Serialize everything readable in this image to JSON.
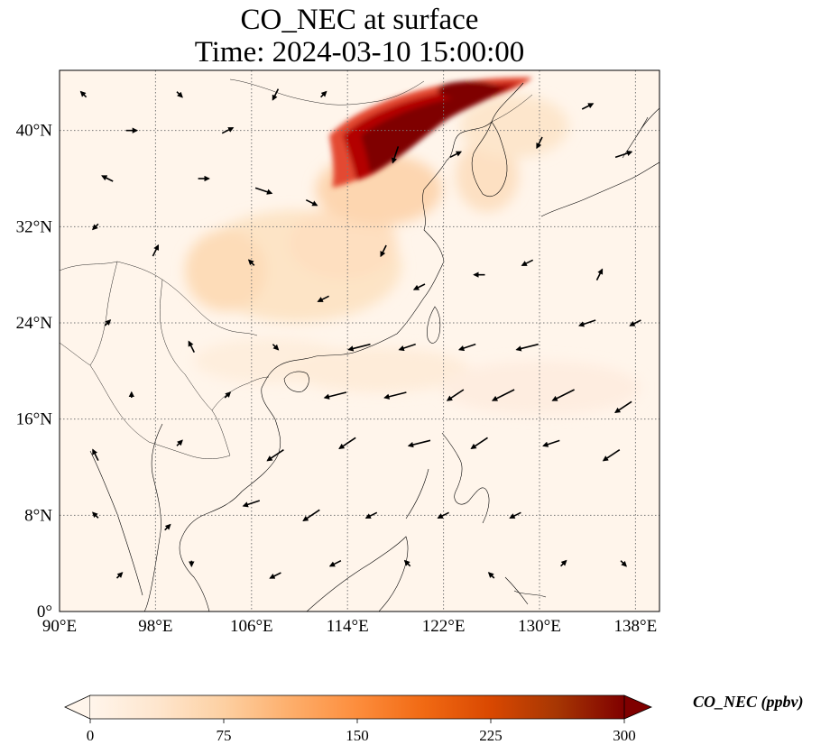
{
  "title": "CO_NEC at surface",
  "subtitle": "Time: 2024-03-10 15:00:00",
  "map": {
    "lon_range": [
      90,
      140
    ],
    "lat_range": [
      0,
      45
    ],
    "lon_ticks": [
      90,
      98,
      106,
      114,
      122,
      130,
      138
    ],
    "lon_tick_labels": [
      "90°E",
      "98°E",
      "106°E",
      "114°E",
      "122°E",
      "130°E",
      "138°E"
    ],
    "lat_ticks": [
      0,
      8,
      16,
      24,
      32,
      40
    ],
    "lat_tick_labels": [
      "0°",
      "8°N",
      "16°N",
      "24°N",
      "32°N",
      "40°N"
    ],
    "gridlines": "dotted",
    "background_color": "#fff5eb",
    "high_concentration_color": "#7f0000"
  },
  "colorbar": {
    "label": "CO_NEC (ppbv)",
    "ticks": [
      0,
      75,
      150,
      225,
      300
    ],
    "tick_labels": [
      "0",
      "75",
      "150",
      "225",
      "300"
    ],
    "min": 0,
    "max": 300,
    "extend": "both",
    "colors": [
      "#fff5eb",
      "#fee6ce",
      "#fdd0a2",
      "#fdae6b",
      "#fd8d3c",
      "#f16913",
      "#d94801",
      "#a63603",
      "#7f0000"
    ]
  },
  "chart_data": {
    "type": "heatmap",
    "title": "CO_NEC at surface",
    "subtitle": "Time: 2024-03-10 15:00:00",
    "variable": "CO_NEC (ppbv)",
    "regions": [
      {
        "lon": 119.0,
        "lat": 41.0,
        "value": 300
      },
      {
        "lon": 122.0,
        "lat": 42.5,
        "value": 300
      },
      {
        "lon": 116.0,
        "lat": 38.5,
        "value": 280
      },
      {
        "lon": 113.0,
        "lat": 39.5,
        "value": 220
      },
      {
        "lon": 126.0,
        "lat": 43.5,
        "value": 250
      },
      {
        "lon": 109.0,
        "lat": 29.5,
        "value": 60
      },
      {
        "lon": 115.0,
        "lat": 29.0,
        "value": 50
      },
      {
        "lon": 125.5,
        "lat": 36.0,
        "value": 45
      },
      {
        "lon": 113.0,
        "lat": 19.0,
        "value": 25
      }
    ],
    "wind_vectors": [
      {
        "lon": 92,
        "lat": 43,
        "u": -1,
        "v": 1
      },
      {
        "lon": 96,
        "lat": 40,
        "u": 2,
        "v": 0
      },
      {
        "lon": 100,
        "lat": 43,
        "u": 1,
        "v": -1
      },
      {
        "lon": 104,
        "lat": 40,
        "u": 2,
        "v": 1
      },
      {
        "lon": 108,
        "lat": 43,
        "u": -1,
        "v": -2
      },
      {
        "lon": 112,
        "lat": 43,
        "u": 1,
        "v": 1
      },
      {
        "lon": 94,
        "lat": 36,
        "u": -2,
        "v": 1
      },
      {
        "lon": 102,
        "lat": 36,
        "u": 2,
        "v": 0
      },
      {
        "lon": 107,
        "lat": 35,
        "u": 3,
        "v": -1
      },
      {
        "lon": 111,
        "lat": 34,
        "u": 2,
        "v": -1
      },
      {
        "lon": 118,
        "lat": 38,
        "u": -1,
        "v": -3
      },
      {
        "lon": 123,
        "lat": 38,
        "u": 2,
        "v": 1
      },
      {
        "lon": 130,
        "lat": 39,
        "u": -1,
        "v": -2
      },
      {
        "lon": 134,
        "lat": 42,
        "u": 2,
        "v": 1
      },
      {
        "lon": 137,
        "lat": 38,
        "u": 3,
        "v": 1
      },
      {
        "lon": 93,
        "lat": 32,
        "u": -1,
        "v": -1
      },
      {
        "lon": 98,
        "lat": 30,
        "u": 1,
        "v": 2
      },
      {
        "lon": 106,
        "lat": 29,
        "u": -1,
        "v": 1
      },
      {
        "lon": 112,
        "lat": 26,
        "u": -2,
        "v": -1
      },
      {
        "lon": 117,
        "lat": 30,
        "u": -1,
        "v": -2
      },
      {
        "lon": 120,
        "lat": 27,
        "u": -2,
        "v": -1
      },
      {
        "lon": 125,
        "lat": 28,
        "u": -2,
        "v": 0
      },
      {
        "lon": 129,
        "lat": 29,
        "u": -2,
        "v": -1
      },
      {
        "lon": 135,
        "lat": 28,
        "u": 1,
        "v": 2
      },
      {
        "lon": 94,
        "lat": 24,
        "u": 1,
        "v": 1
      },
      {
        "lon": 101,
        "lat": 22,
        "u": -1,
        "v": 2
      },
      {
        "lon": 108,
        "lat": 22,
        "u": 1,
        "v": -1
      },
      {
        "lon": 115,
        "lat": 22,
        "u": -4,
        "v": -1
      },
      {
        "lon": 119,
        "lat": 22,
        "u": -3,
        "v": -1
      },
      {
        "lon": 124,
        "lat": 22,
        "u": -3,
        "v": -1
      },
      {
        "lon": 129,
        "lat": 22,
        "u": -4,
        "v": -1
      },
      {
        "lon": 134,
        "lat": 24,
        "u": -3,
        "v": -1
      },
      {
        "lon": 138,
        "lat": 24,
        "u": -2,
        "v": -1
      },
      {
        "lon": 96,
        "lat": 18,
        "u": 0,
        "v": 1
      },
      {
        "lon": 104,
        "lat": 18,
        "u": 1,
        "v": 1
      },
      {
        "lon": 113,
        "lat": 18,
        "u": -4,
        "v": -1
      },
      {
        "lon": 118,
        "lat": 18,
        "u": -4,
        "v": -1
      },
      {
        "lon": 123,
        "lat": 18,
        "u": -3,
        "v": -2
      },
      {
        "lon": 127,
        "lat": 18,
        "u": -4,
        "v": -2
      },
      {
        "lon": 132,
        "lat": 18,
        "u": -4,
        "v": -2
      },
      {
        "lon": 137,
        "lat": 17,
        "u": -3,
        "v": -2
      },
      {
        "lon": 93,
        "lat": 13,
        "u": -1,
        "v": 2
      },
      {
        "lon": 100,
        "lat": 14,
        "u": 1,
        "v": 1
      },
      {
        "lon": 108,
        "lat": 13,
        "u": -3,
        "v": -2
      },
      {
        "lon": 114,
        "lat": 14,
        "u": -3,
        "v": -2
      },
      {
        "lon": 120,
        "lat": 14,
        "u": -4,
        "v": -1
      },
      {
        "lon": 125,
        "lat": 14,
        "u": -3,
        "v": -2
      },
      {
        "lon": 131,
        "lat": 14,
        "u": -3,
        "v": -1
      },
      {
        "lon": 136,
        "lat": 13,
        "u": -3,
        "v": -2
      },
      {
        "lon": 93,
        "lat": 8,
        "u": -1,
        "v": 1
      },
      {
        "lon": 99,
        "lat": 7,
        "u": 1,
        "v": 1
      },
      {
        "lon": 106,
        "lat": 9,
        "u": -3,
        "v": -1
      },
      {
        "lon": 111,
        "lat": 8,
        "u": -3,
        "v": -2
      },
      {
        "lon": 116,
        "lat": 8,
        "u": -2,
        "v": -1
      },
      {
        "lon": 122,
        "lat": 8,
        "u": -2,
        "v": -1
      },
      {
        "lon": 128,
        "lat": 8,
        "u": -2,
        "v": -1
      },
      {
        "lon": 95,
        "lat": 3,
        "u": 1,
        "v": 1
      },
      {
        "lon": 101,
        "lat": 4,
        "u": 0,
        "v": -1
      },
      {
        "lon": 108,
        "lat": 3,
        "u": -2,
        "v": -1
      },
      {
        "lon": 113,
        "lat": 4,
        "u": -2,
        "v": -1
      },
      {
        "lon": 119,
        "lat": 4,
        "u": -1,
        "v": 1
      },
      {
        "lon": 126,
        "lat": 3,
        "u": -1,
        "v": 1
      },
      {
        "lon": 132,
        "lat": 4,
        "u": 1,
        "v": 1
      },
      {
        "lon": 137,
        "lat": 4,
        "u": 1,
        "v": -1
      }
    ]
  }
}
